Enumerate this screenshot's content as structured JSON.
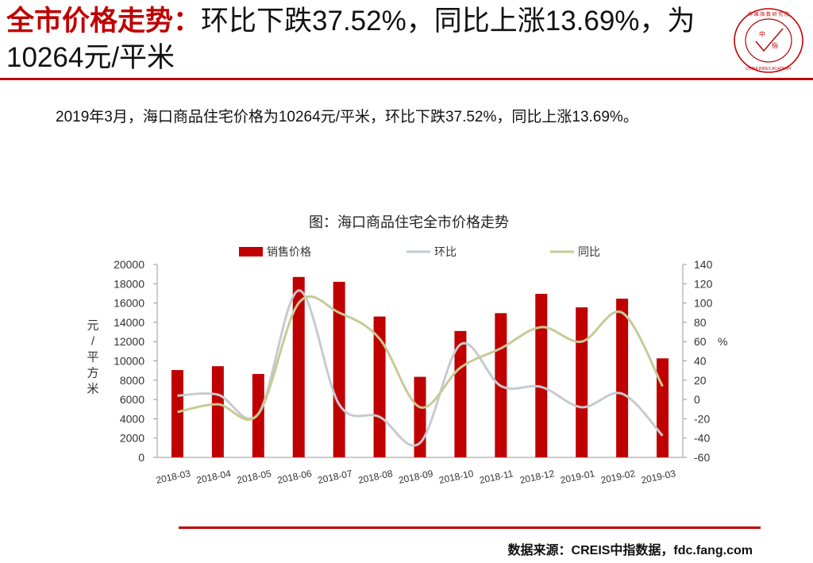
{
  "header": {
    "title_highlight": "全市价格走势：",
    "title_rest": "环比下跌37.52%，同比上涨13.69%，为10264元/平米"
  },
  "logo": {
    "text_top": "中国指数研究院",
    "text_bottom": "CHINA INDEX ACADEMY",
    "center_char": "中指",
    "colors": {
      "ring": "#c00000"
    }
  },
  "summary": "2019年3月，海口商品住宅价格为10264元/平米，环比下跌37.52%，同比上涨13.69%。",
  "source": "数据来源：CREIS中指数据，fdc.fang.com",
  "chart_data": {
    "type": "bar",
    "title": "图：海口商品住宅全市价格走势",
    "categories": [
      "2018-03",
      "2018-04",
      "2018-05",
      "2018-06",
      "2018-07",
      "2018-08",
      "2018-09",
      "2018-10",
      "2018-11",
      "2018-12",
      "2019-01",
      "2019-02",
      "2019-03"
    ],
    "series": [
      {
        "name": "销售价格",
        "type": "bar",
        "axis": "left",
        "color": "#c00000",
        "values": [
          9050,
          9450,
          8650,
          18700,
          18200,
          14600,
          8350,
          13100,
          14950,
          16950,
          15550,
          16450,
          10264
        ]
      },
      {
        "name": "环比",
        "type": "line",
        "axis": "right",
        "color": "#c5cbcf",
        "values": [
          4,
          5,
          -15,
          113,
          -5,
          -18,
          -45,
          57,
          14,
          13,
          -8,
          6,
          -37.52
        ]
      },
      {
        "name": "同比",
        "type": "line",
        "axis": "right",
        "color": "#c7ca96",
        "values": [
          -13,
          -5,
          -15,
          100,
          90,
          63,
          -8,
          33,
          53,
          75,
          60,
          90,
          13.69
        ]
      }
    ],
    "yleft": {
      "label": "元/平方米",
      "ylim": [
        0,
        20000
      ],
      "ticks": [
        0,
        2000,
        4000,
        6000,
        8000,
        10000,
        12000,
        14000,
        16000,
        18000,
        20000
      ]
    },
    "yright": {
      "label": "%",
      "ylim": [
        -60,
        140
      ],
      "ticks": [
        -60,
        -40,
        -20,
        0,
        20,
        40,
        60,
        80,
        100,
        120,
        140
      ]
    },
    "legend_position": "top",
    "grid": false
  }
}
